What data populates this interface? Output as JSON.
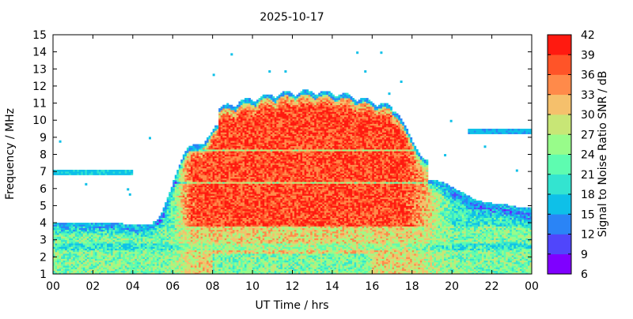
{
  "chart_data": {
    "type": "heatmap",
    "title": "2025-10-17",
    "xlabel": "UT Time / hrs",
    "ylabel": "Frequency / MHz",
    "colorbar_label": "Signal to Noise Ratio SNR / dB",
    "xlim": [
      0,
      24
    ],
    "ylim": [
      1,
      15
    ],
    "xticks": [
      "00",
      "02",
      "04",
      "06",
      "08",
      "10",
      "12",
      "14",
      "16",
      "18",
      "20",
      "22",
      "00"
    ],
    "yticks": [
      1,
      2,
      3,
      4,
      5,
      6,
      7,
      8,
      9,
      10,
      11,
      12,
      13,
      14,
      15
    ],
    "colorbar": {
      "min": 6,
      "max": 42,
      "ticks": [
        6,
        9,
        12,
        15,
        18,
        21,
        24,
        27,
        30,
        33,
        36,
        39,
        42
      ],
      "colors": [
        "#7f00ff",
        "#5046fb",
        "#2a84f6",
        "#0ec0e8",
        "#33e4d0",
        "#5efcb0",
        "#98fc8a",
        "#c8e676",
        "#f5c06c",
        "#ff8a4a",
        "#ff5428",
        "#ff1a10"
      ]
    },
    "regions": [
      {
        "name": "night low band",
        "x": [
          0,
          5.2
        ],
        "y": [
          1,
          4
        ],
        "snr": 24
      },
      {
        "name": "daytime F-region",
        "x": [
          5.5,
          19
        ],
        "y": [
          3,
          9
        ],
        "snr": 38
      },
      {
        "name": "midday peak",
        "x": [
          8.5,
          17
        ],
        "y": [
          8,
          11.5
        ],
        "snr": 39
      },
      {
        "name": "evening low band",
        "x": [
          19,
          24
        ],
        "y": [
          1,
          4.5
        ],
        "snr": 27
      },
      {
        "name": "7 MHz early trace",
        "x": [
          0,
          4
        ],
        "y": [
          6.8,
          7.1
        ],
        "snr": 18
      },
      {
        "name": "9 MHz late trace",
        "x": [
          21,
          24
        ],
        "y": [
          9.2,
          9.5
        ],
        "snr": 17
      }
    ],
    "grid": false,
    "legend": "colorbar-right"
  }
}
